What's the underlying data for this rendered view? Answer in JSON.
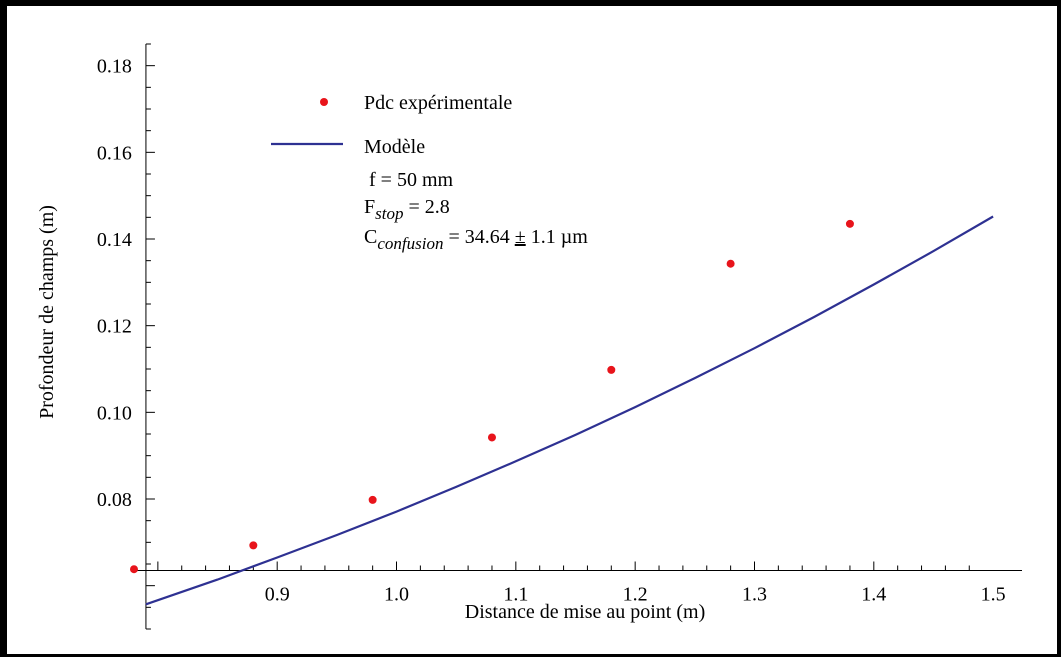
{
  "chart_data": {
    "type": "scatter",
    "xlabel": "Distance de mise au point (m)",
    "ylabel": "Profondeur de champs (m)",
    "xlim": [
      0.78,
      1.52
    ],
    "ylim": [
      0.05,
      0.185
    ],
    "x_ticks": [
      0.9,
      1.0,
      1.1,
      1.2,
      1.3,
      1.4,
      1.5
    ],
    "x_tick_labels": [
      "0.9",
      "1.0",
      "1.1",
      "1.2",
      "1.3",
      "1.4",
      "1.5"
    ],
    "y_ticks": [
      0.08,
      0.1,
      0.12,
      0.14,
      0.16,
      0.18
    ],
    "y_tick_labels": [
      "0.08",
      "0.10",
      "0.12",
      "0.14",
      "0.16",
      "0.18"
    ],
    "x_axis_at_y": 0.0635,
    "y_axis_at_x": 0.79,
    "series": [
      {
        "name": "Pdc expérimentale",
        "kind": "points",
        "color": "#e8141b",
        "x": [
          0.78,
          0.88,
          0.98,
          1.08,
          1.18,
          1.28,
          1.38
        ],
        "y": [
          0.0638,
          0.0693,
          0.0798,
          0.0942,
          0.1098,
          0.1343,
          0.1435
        ]
      },
      {
        "name": "Modèle",
        "kind": "line",
        "color": "#2e3192",
        "x": [
          0.79,
          0.85,
          0.9,
          0.95,
          1.0,
          1.05,
          1.1,
          1.15,
          1.2,
          1.25,
          1.3,
          1.35,
          1.4,
          1.45,
          1.5
        ],
        "y": [
          0.0557,
          0.0614,
          0.0665,
          0.0717,
          0.0771,
          0.0828,
          0.0887,
          0.0948,
          0.1012,
          0.1079,
          0.1148,
          0.122,
          0.1295,
          0.1372,
          0.1452
        ]
      }
    ],
    "legend": {
      "placement": "top-left",
      "points_label": "Pdc expérimentale",
      "line_label": "Modèle",
      "f_text": "f = 50 mm",
      "fstop_main": "F",
      "fstop_sub": "stop",
      "fstop_value": " = 2.8",
      "conf_main": "C",
      "conf_sub": "confusion",
      "conf_value": " = 34.64 ",
      "conf_pm": "±",
      "conf_err": " 1.1 µm"
    }
  }
}
